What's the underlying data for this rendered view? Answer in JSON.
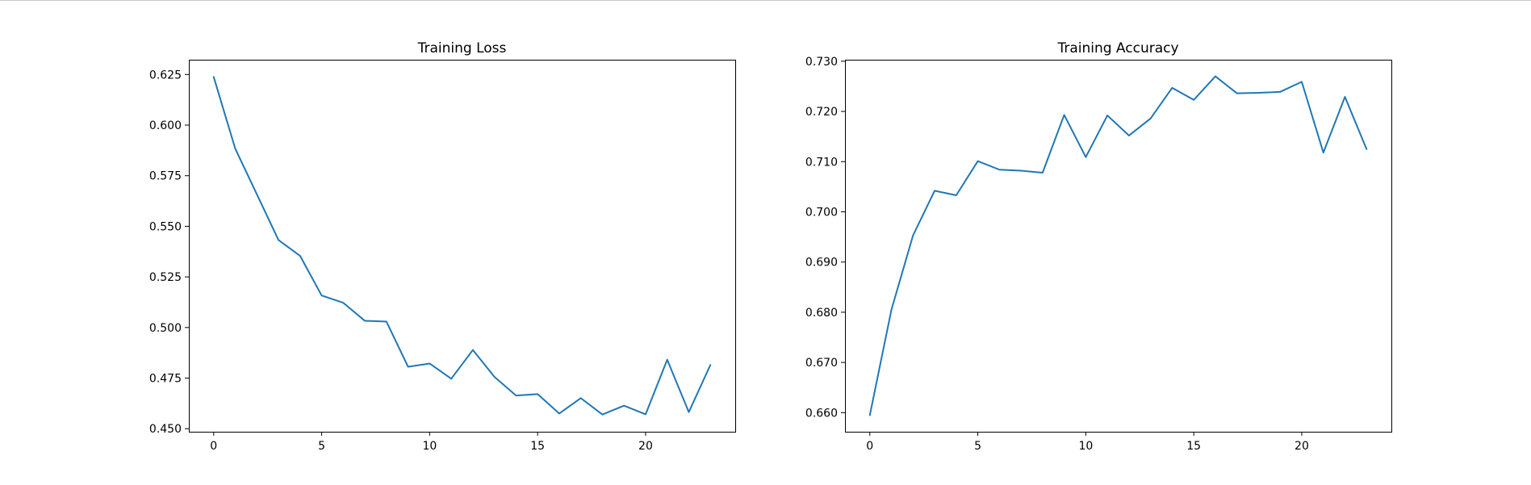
{
  "colors": {
    "series": "#1f77b4",
    "frame": "#000000",
    "background": "#ffffff"
  },
  "chart_data": [
    {
      "type": "line",
      "title": "Training Loss",
      "xlabel": "",
      "ylabel": "",
      "xlim": [
        -1.15,
        24.15
      ],
      "ylim": [
        0.4485,
        0.6323
      ],
      "xticks": [
        0,
        5,
        10,
        15,
        20
      ],
      "xtick_labels": [
        "0",
        "5",
        "10",
        "15",
        "20"
      ],
      "yticks": [
        0.45,
        0.475,
        0.5,
        0.525,
        0.55,
        0.575,
        0.6,
        0.625
      ],
      "ytick_labels": [
        "0.450",
        "0.475",
        "0.500",
        "0.525",
        "0.550",
        "0.575",
        "0.600",
        "0.625"
      ],
      "grid": false,
      "legend": "none",
      "series": [
        {
          "x": [
            0,
            1,
            2,
            3,
            4,
            5,
            6,
            7,
            8,
            9,
            10,
            11,
            12,
            13,
            14,
            15,
            16,
            17,
            18,
            19,
            20,
            21,
            22,
            23
          ],
          "values": [
            0.6238,
            0.5883,
            0.5658,
            0.5432,
            0.5354,
            0.5158,
            0.5122,
            0.5033,
            0.5029,
            0.4806,
            0.4822,
            0.4747,
            0.4889,
            0.4756,
            0.4664,
            0.4671,
            0.4575,
            0.4651,
            0.457,
            0.4614,
            0.4571,
            0.4841,
            0.4582,
            0.4815
          ]
        }
      ]
    },
    {
      "type": "line",
      "title": "Training Accuracy",
      "xlabel": "",
      "ylabel": "",
      "xlim": [
        -1.15,
        24.15
      ],
      "ylim": [
        0.6562,
        0.7303
      ],
      "xticks": [
        0,
        5,
        10,
        15,
        20
      ],
      "xtick_labels": [
        "0",
        "5",
        "10",
        "15",
        "20"
      ],
      "yticks": [
        0.66,
        0.67,
        0.68,
        0.69,
        0.7,
        0.71,
        0.72,
        0.73
      ],
      "ytick_labels": [
        "0.660",
        "0.670",
        "0.680",
        "0.690",
        "0.700",
        "0.710",
        "0.720",
        "0.730"
      ],
      "grid": false,
      "legend": "none",
      "series": [
        {
          "x": [
            0,
            1,
            2,
            3,
            4,
            5,
            6,
            7,
            8,
            9,
            10,
            11,
            12,
            13,
            14,
            15,
            16,
            17,
            18,
            19,
            20,
            21,
            22,
            23
          ],
          "values": [
            0.6595,
            0.6805,
            0.6953,
            0.7042,
            0.7033,
            0.7101,
            0.7084,
            0.7082,
            0.7078,
            0.7193,
            0.7109,
            0.7192,
            0.7152,
            0.7186,
            0.7247,
            0.7223,
            0.727,
            0.7236,
            0.7237,
            0.7239,
            0.7259,
            0.7118,
            0.7229,
            0.7125
          ]
        }
      ]
    }
  ]
}
